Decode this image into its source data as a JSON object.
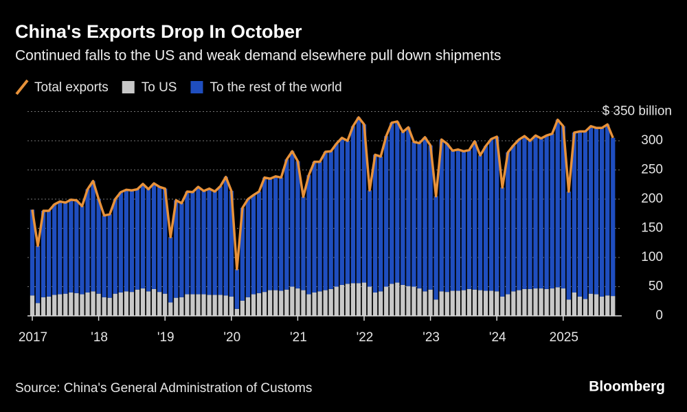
{
  "chart_data": {
    "type": "bar",
    "stacked": true,
    "title": "China's Exports Drop In October",
    "subtitle": "Continued falls to the US and weak demand elsewhere pull down shipments",
    "source": "Source: China's General Administration of Customs",
    "brand": "Bloomberg",
    "categories": [
      "2017",
      null,
      null,
      null,
      null,
      null,
      null,
      null,
      null,
      null,
      null,
      null,
      "'18",
      null,
      null,
      null,
      null,
      null,
      null,
      null,
      null,
      null,
      null,
      null,
      "'19",
      null,
      null,
      null,
      null,
      null,
      null,
      null,
      null,
      null,
      null,
      null,
      "'20",
      null,
      null,
      null,
      null,
      null,
      null,
      null,
      null,
      null,
      null,
      null,
      "'21",
      null,
      null,
      null,
      null,
      null,
      null,
      null,
      null,
      null,
      null,
      null,
      "'22",
      null,
      null,
      null,
      null,
      null,
      null,
      null,
      null,
      null,
      null,
      null,
      "'23",
      null,
      null,
      null,
      null,
      null,
      null,
      null,
      null,
      null,
      null,
      null,
      "'24",
      null,
      null,
      null,
      null,
      null,
      null,
      null,
      null,
      null,
      null,
      null,
      "2025",
      null,
      null,
      null,
      null,
      null,
      null,
      null,
      null,
      null
    ],
    "series": [
      {
        "name": "Total exports",
        "type": "line",
        "color": "#e8923a",
        "values": [
          182,
          120,
          180,
          180,
          191,
          196,
          194,
          199,
          198,
          188,
          217,
          231,
          200,
          172,
          174,
          200,
          212,
          216,
          215,
          217,
          226,
          217,
          227,
          221,
          218,
          135,
          198,
          193,
          213,
          212,
          221,
          214,
          218,
          213,
          222,
          238,
          214,
          80,
          185,
          200,
          207,
          213,
          237,
          235,
          239,
          237,
          268,
          282,
          265,
          204,
          241,
          264,
          264,
          281,
          282,
          295,
          305,
          300,
          325,
          340,
          328,
          215,
          276,
          273,
          308,
          331,
          333,
          315,
          323,
          298,
          296,
          306,
          292,
          205,
          302,
          295,
          283,
          285,
          282,
          284,
          299,
          275,
          291,
          303,
          307,
          220,
          280,
          292,
          302,
          308,
          300,
          309,
          304,
          309,
          312,
          336,
          325,
          213,
          314,
          316,
          316,
          325,
          322,
          322,
          328,
          305
        ]
      },
      {
        "name": "To US",
        "type": "bar",
        "color": "#c8c8c8",
        "values": [
          35,
          22,
          32,
          33,
          36,
          37,
          38,
          40,
          39,
          37,
          40,
          42,
          38,
          32,
          31,
          38,
          40,
          42,
          41,
          45,
          47,
          42,
          46,
          41,
          38,
          23,
          31,
          32,
          37,
          37,
          37,
          37,
          36,
          36,
          36,
          35,
          33,
          12,
          26,
          32,
          37,
          39,
          41,
          44,
          44,
          43,
          45,
          50,
          47,
          44,
          37,
          40,
          42,
          44,
          46,
          50,
          53,
          55,
          56,
          56,
          57,
          50,
          40,
          42,
          50,
          55,
          57,
          53,
          51,
          50,
          47,
          42,
          45,
          28,
          42,
          41,
          43,
          43,
          44,
          46,
          45,
          44,
          43,
          43,
          42,
          33,
          37,
          42,
          44,
          46,
          46,
          47,
          47,
          46,
          47,
          49,
          47,
          28,
          40,
          33,
          29,
          38,
          37,
          33,
          35,
          34
        ]
      },
      {
        "name": "To the rest of the world",
        "type": "bar",
        "color": "#1f4ebf",
        "values": [
          147,
          98,
          148,
          147,
          155,
          159,
          156,
          159,
          159,
          151,
          177,
          189,
          162,
          140,
          143,
          162,
          172,
          174,
          174,
          172,
          179,
          175,
          181,
          180,
          180,
          112,
          167,
          161,
          176,
          175,
          184,
          177,
          182,
          177,
          186,
          203,
          181,
          68,
          159,
          168,
          170,
          174,
          196,
          191,
          195,
          194,
          223,
          232,
          218,
          160,
          204,
          224,
          222,
          237,
          236,
          245,
          252,
          245,
          269,
          284,
          271,
          165,
          236,
          231,
          258,
          276,
          276,
          262,
          272,
          248,
          249,
          264,
          247,
          177,
          260,
          254,
          240,
          242,
          238,
          238,
          254,
          231,
          248,
          260,
          265,
          187,
          243,
          250,
          258,
          262,
          254,
          262,
          257,
          263,
          265,
          287,
          278,
          185,
          274,
          283,
          287,
          287,
          285,
          289,
          293,
          271
        ]
      }
    ],
    "ylim": [
      0,
      350
    ],
    "yticks": [
      0,
      50,
      100,
      150,
      200,
      250,
      300,
      {
        "value": 350,
        "label": "$ 350 billion"
      }
    ],
    "grid": true
  }
}
